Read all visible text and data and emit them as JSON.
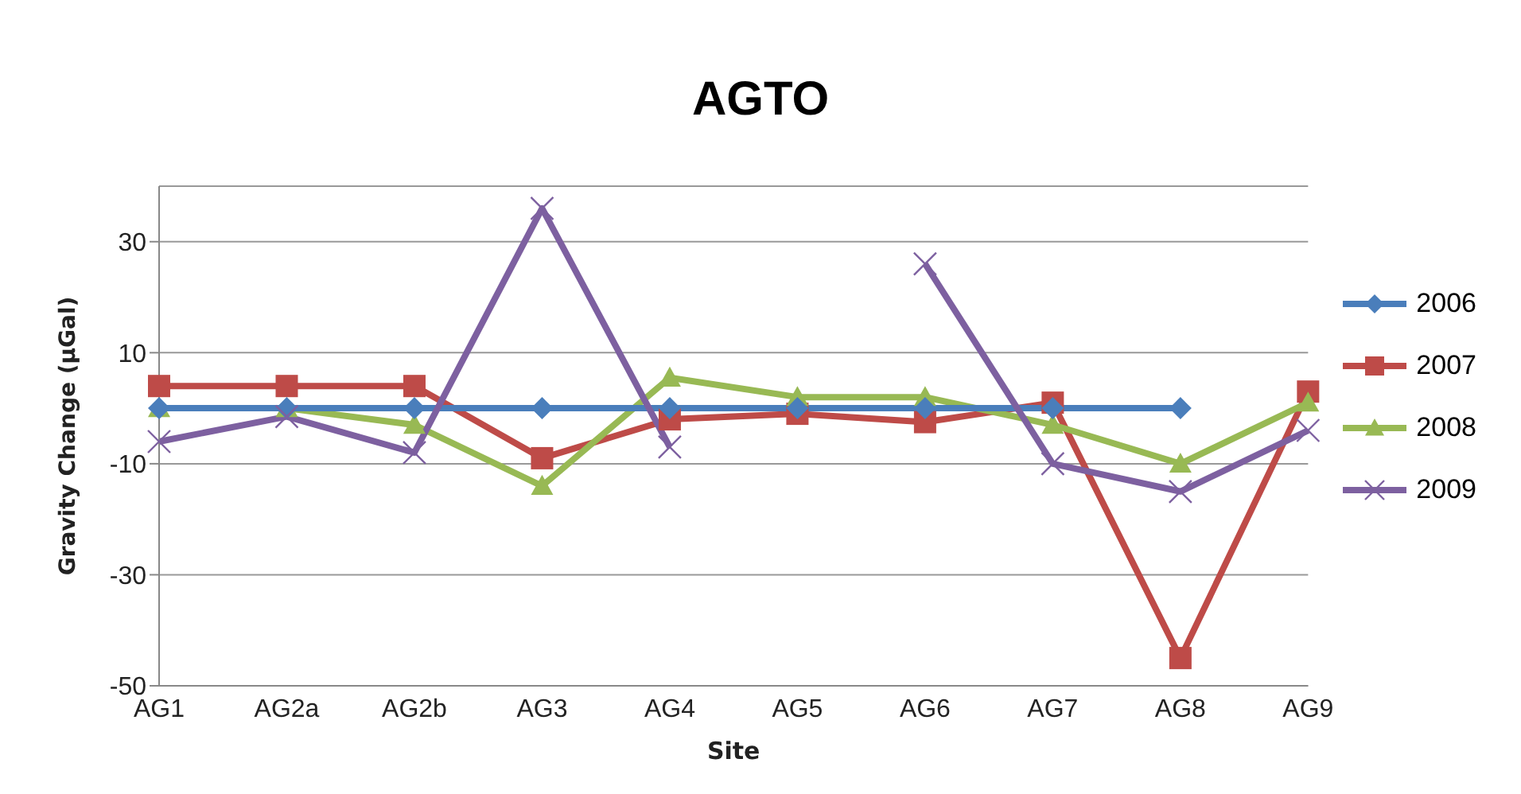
{
  "chart_data": {
    "type": "line",
    "title": "AGTO",
    "xlabel": "Site",
    "ylabel": "Gravity Change (µGal)",
    "categories": [
      "AG1",
      "AG2a",
      "AG2b",
      "AG3",
      "AG4",
      "AG5",
      "AG6",
      "AG7",
      "AG8",
      "AG9"
    ],
    "series": [
      {
        "name": "2006",
        "color": "#4a7ebb",
        "marker": "diamond",
        "values": [
          0,
          0,
          0,
          0,
          0,
          0,
          0,
          0,
          0,
          null
        ]
      },
      {
        "name": "2007",
        "color": "#be4b48",
        "marker": "square",
        "values": [
          4,
          4,
          4,
          -9,
          -2,
          -1,
          -2.5,
          1,
          -45,
          3
        ]
      },
      {
        "name": "2008",
        "color": "#98b954",
        "marker": "triangle",
        "values": [
          0,
          0,
          -3,
          -14,
          5.5,
          2,
          2,
          -3,
          -10,
          1
        ]
      },
      {
        "name": "2009",
        "color": "#7d60a0",
        "marker": "cross",
        "values": [
          -6,
          -1.5,
          -8,
          36,
          -7,
          null,
          26,
          -10,
          -15,
          -4
        ]
      }
    ],
    "ylim": [
      -50,
      40
    ],
    "yticks": [
      -50,
      -30,
      -10,
      10,
      30
    ],
    "grid": "y",
    "legend": "right",
    "line_style": "solid"
  }
}
